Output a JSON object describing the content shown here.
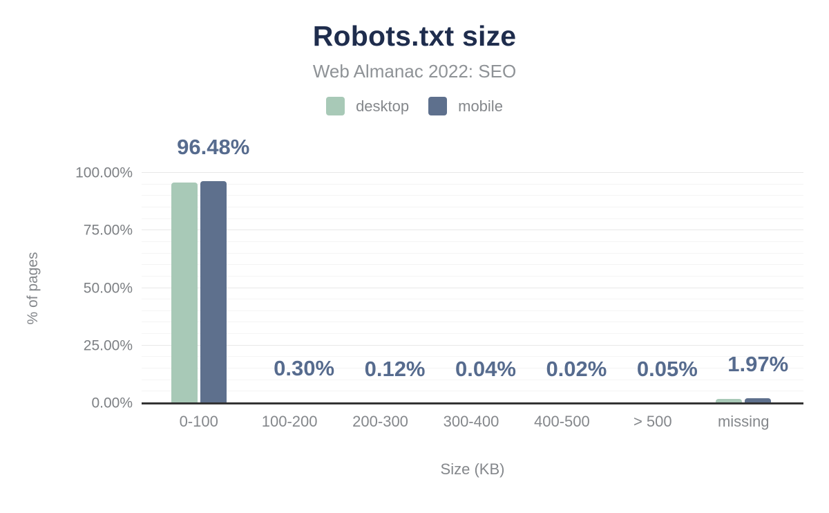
{
  "header": {
    "title": "Robots.txt size",
    "subtitle": "Web Almanac 2022: SEO"
  },
  "colors": {
    "desktop": "#a8c9b7",
    "mobile": "#5e708d",
    "title_text": "#1f2d4d",
    "muted_text": "#84878b",
    "data_label_text": "#566b8e",
    "axis_line": "#333333",
    "grid_major": "#e8e8e8",
    "grid_minor": "#f4f4f4"
  },
  "chart_data": {
    "type": "bar",
    "title": "Robots.txt size",
    "subtitle": "Web Almanac 2022: SEO",
    "categories": [
      "0-100",
      "100-200",
      "200-300",
      "300-400",
      "400-500",
      "> 500",
      "missing"
    ],
    "series": [
      {
        "name": "desktop",
        "color": "#a8c9b7",
        "values": [
          95.9,
          0.3,
          0.12,
          0.04,
          0.02,
          0.05,
          1.85
        ]
      },
      {
        "name": "mobile",
        "color": "#5e708d",
        "values": [
          96.48,
          0.3,
          0.12,
          0.04,
          0.02,
          0.05,
          1.97
        ]
      }
    ],
    "data_labels": [
      "96.48%",
      "0.30%",
      "0.12%",
      "0.04%",
      "0.02%",
      "0.05%",
      "1.97%"
    ],
    "xlabel": "Size (KB)",
    "ylabel": "% of pages",
    "ylim": [
      0,
      100
    ],
    "yticks": [
      "0.00%",
      "25.00%",
      "50.00%",
      "75.00%",
      "100.00%"
    ],
    "ytick_values": [
      0,
      25,
      50,
      75,
      100
    ],
    "minor_grid_step": 5,
    "major_grid_step": 25,
    "grid": "horizontal",
    "legend_position": "top"
  }
}
